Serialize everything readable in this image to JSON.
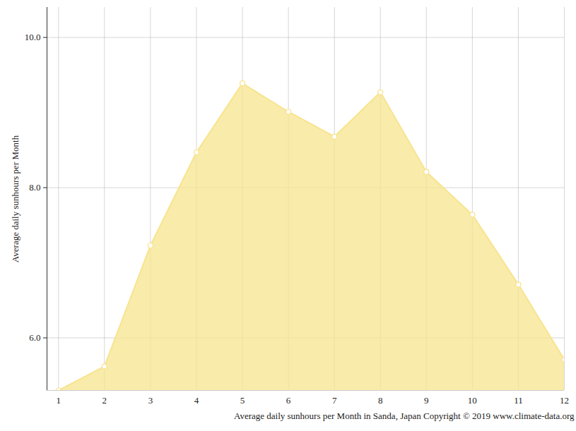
{
  "chart_data": {
    "type": "area",
    "ylabel": "Average daily sunhours per Month",
    "xlabel": "Average daily sunhours per Month in Sanda, Japan Copyright © 2019 www.climate-data.org",
    "x": [
      1,
      2,
      3,
      4,
      5,
      6,
      7,
      8,
      9,
      10,
      11,
      12
    ],
    "values": [
      5.3,
      5.62,
      7.23,
      8.47,
      9.39,
      9.01,
      8.68,
      9.27,
      8.21,
      7.64,
      6.71,
      5.71
    ],
    "color": "#f7e48e",
    "marker": "circle",
    "xlim": [
      0.75,
      12
    ],
    "xticks": [
      1,
      2,
      3,
      4,
      5,
      6,
      7,
      8,
      9,
      10,
      11,
      12
    ],
    "ylim": [
      5.3,
      10.4
    ],
    "yticks": [
      6,
      8,
      10
    ],
    "grid": true
  }
}
